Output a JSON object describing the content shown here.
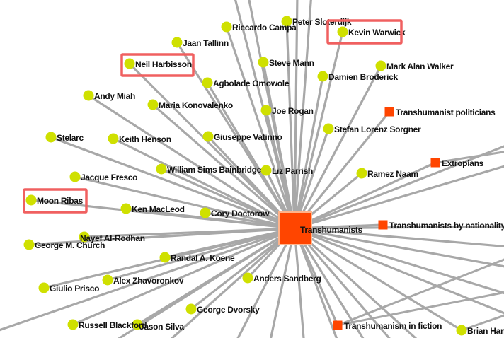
{
  "graph": {
    "center": {
      "label": "Transhumanists",
      "color": "#ff4500"
    },
    "node_color": "#cfe000",
    "category_color": "#ff4500",
    "edge_color": "#a8a8a8",
    "highlight_color": "#f06060",
    "people": [
      "Riccardo Campa",
      "Peter Sloterdijk",
      "Kevin Warwick",
      "Jaan Tallinn",
      "Neil Harbisson",
      "Steve Mann",
      "Mark Alan Walker",
      "Agbolade Omowole",
      "Damien Broderick",
      "Andy Miah",
      "Maria Konovalenko",
      "Joe Rogan",
      "Stefan Lorenz Sorgner",
      "Stelarc",
      "Keith Henson",
      "Giuseppe Vatinno",
      "William Sims Bainbridge",
      "Liz Parrish",
      "Ramez Naam",
      "Jacque Fresco",
      "Moon Ribas",
      "Ken MacLeod",
      "Cory Doctorow",
      "Nayef Al-Rodhan",
      "George M. Church",
      "Randal A. Koene",
      "Alex Zhavoronkov",
      "Anders Sandberg",
      "Giulio Prisco",
      "George Dvorsky",
      "Russell Blackford",
      "Jason Silva",
      "Brian Han"
    ],
    "categories": [
      "Transhumanist politicians",
      "Extropians",
      "Transhumanists by nationality",
      "Transhumanism in fiction"
    ],
    "highlighted": [
      "Kevin Warwick",
      "Neil Harbisson",
      "Moon Ribas"
    ]
  }
}
